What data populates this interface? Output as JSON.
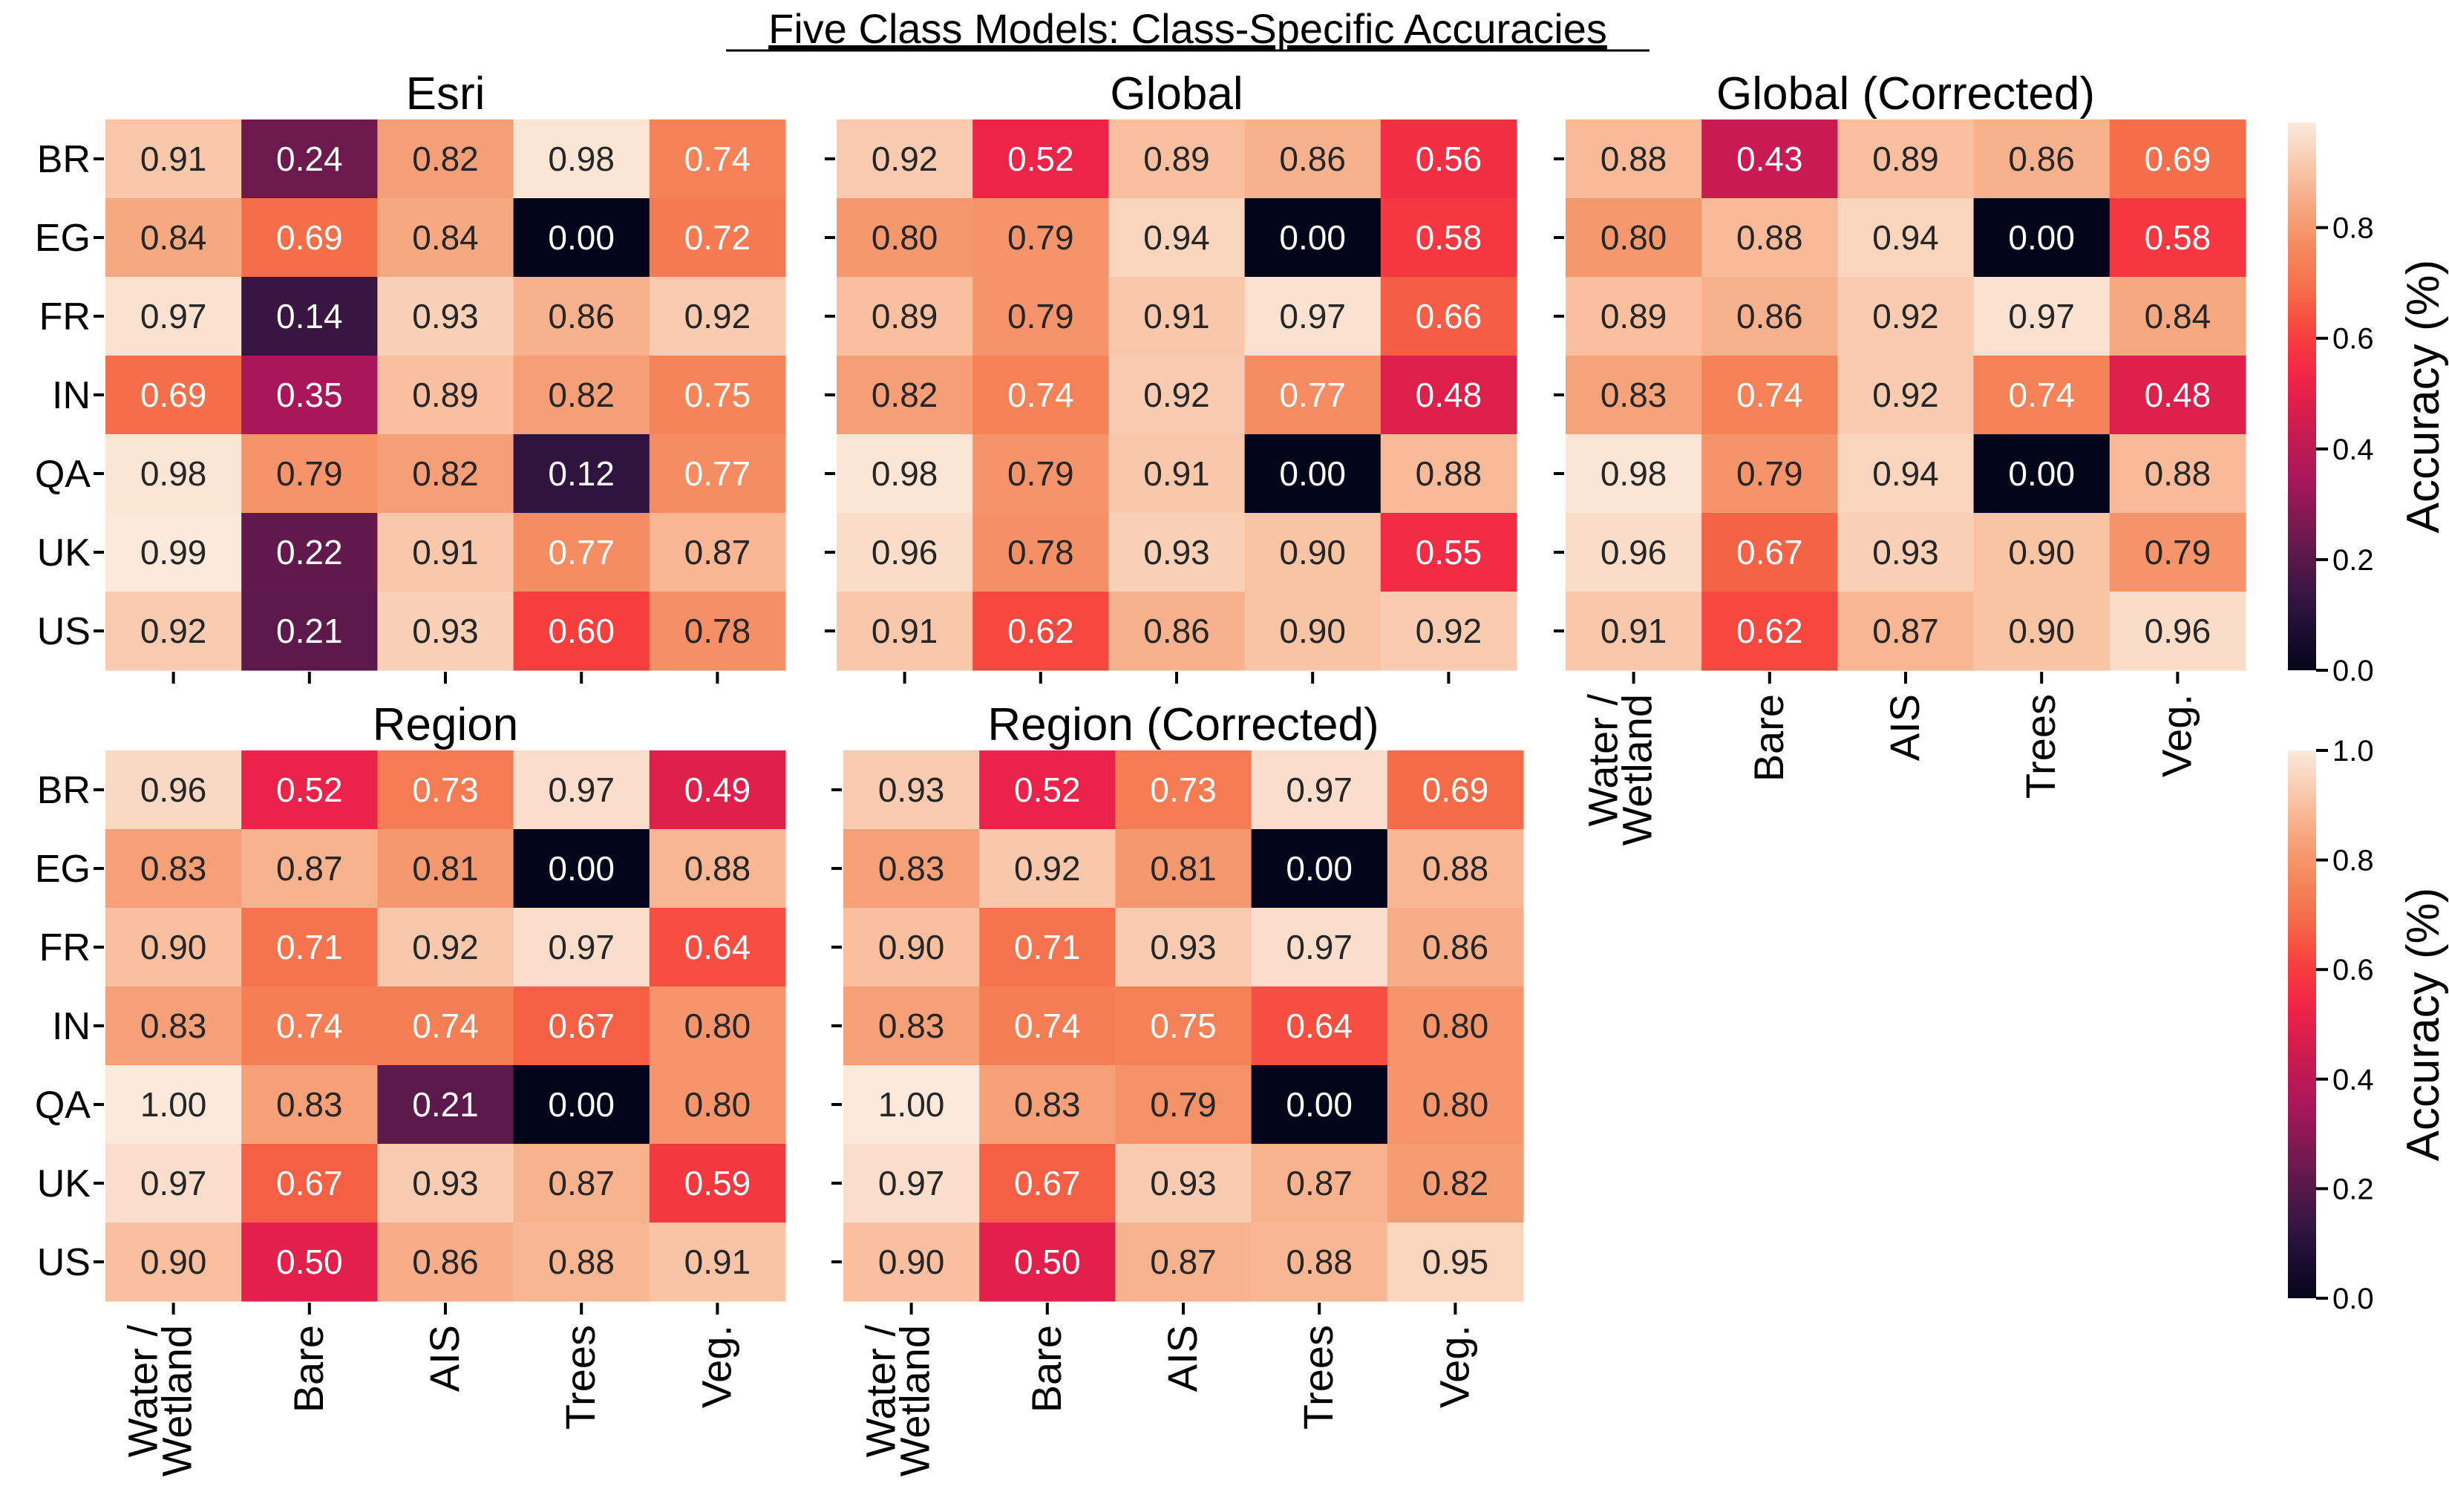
{
  "chart_data": {
    "type": "heatmap",
    "title": "Five Class Models: Class-Specific Accuracies",
    "rows": [
      "BR",
      "EG",
      "FR",
      "IN",
      "QA",
      "UK",
      "US"
    ],
    "columns": [
      "Water / Wetland",
      "Bare",
      "AIS",
      "Trees",
      "Veg."
    ],
    "colorbars": [
      {
        "label": "Accuracy (%)",
        "range": [
          0,
          0.99
        ],
        "ticks": [
          0.0,
          0.2,
          0.4,
          0.6,
          0.8
        ],
        "tick_labels": [
          "0.0",
          "0.2",
          "0.4",
          "0.6",
          "0.8"
        ]
      },
      {
        "label": "Accuracy (%)",
        "range": [
          0,
          1.0
        ],
        "ticks": [
          0.0,
          0.2,
          0.4,
          0.6,
          0.8,
          1.0
        ],
        "tick_labels": [
          "0.0",
          "0.2",
          "0.4",
          "0.6",
          "0.8",
          "1.0"
        ]
      }
    ],
    "panels": [
      {
        "title": "Esri",
        "colorbar": 0,
        "values": [
          [
            0.91,
            0.24,
            0.82,
            0.98,
            0.74
          ],
          [
            0.84,
            0.69,
            0.84,
            0.0,
            0.72
          ],
          [
            0.97,
            0.14,
            0.93,
            0.86,
            0.92
          ],
          [
            0.69,
            0.35,
            0.89,
            0.82,
            0.75
          ],
          [
            0.98,
            0.79,
            0.82,
            0.12,
            0.77
          ],
          [
            0.99,
            0.22,
            0.91,
            0.77,
            0.87
          ],
          [
            0.92,
            0.21,
            0.93,
            0.6,
            0.78
          ]
        ]
      },
      {
        "title": "Global",
        "colorbar": 0,
        "values": [
          [
            0.92,
            0.52,
            0.89,
            0.86,
            0.56
          ],
          [
            0.8,
            0.79,
            0.94,
            0.0,
            0.58
          ],
          [
            0.89,
            0.79,
            0.91,
            0.97,
            0.66
          ],
          [
            0.82,
            0.74,
            0.92,
            0.77,
            0.48
          ],
          [
            0.98,
            0.79,
            0.91,
            0.0,
            0.88
          ],
          [
            0.96,
            0.78,
            0.93,
            0.9,
            0.55
          ],
          [
            0.91,
            0.62,
            0.86,
            0.9,
            0.92
          ]
        ]
      },
      {
        "title": "Global (Corrected)",
        "colorbar": 0,
        "values": [
          [
            0.88,
            0.43,
            0.89,
            0.86,
            0.69
          ],
          [
            0.8,
            0.88,
            0.94,
            0.0,
            0.58
          ],
          [
            0.89,
            0.86,
            0.92,
            0.97,
            0.84
          ],
          [
            0.83,
            0.74,
            0.92,
            0.74,
            0.48
          ],
          [
            0.98,
            0.79,
            0.94,
            0.0,
            0.88
          ],
          [
            0.96,
            0.67,
            0.93,
            0.9,
            0.79
          ],
          [
            0.91,
            0.62,
            0.87,
            0.9,
            0.96
          ]
        ]
      },
      {
        "title": "Region",
        "colorbar": 1,
        "values": [
          [
            0.96,
            0.52,
            0.73,
            0.97,
            0.49
          ],
          [
            0.83,
            0.87,
            0.81,
            0.0,
            0.88
          ],
          [
            0.9,
            0.71,
            0.92,
            0.97,
            0.64
          ],
          [
            0.83,
            0.74,
            0.74,
            0.67,
            0.8
          ],
          [
            1.0,
            0.83,
            0.21,
            0.0,
            0.8
          ],
          [
            0.97,
            0.67,
            0.93,
            0.87,
            0.59
          ],
          [
            0.9,
            0.5,
            0.86,
            0.88,
            0.91
          ]
        ]
      },
      {
        "title": "Region (Corrected)",
        "colorbar": 1,
        "values": [
          [
            0.93,
            0.52,
            0.73,
            0.97,
            0.69
          ],
          [
            0.83,
            0.92,
            0.81,
            0.0,
            0.88
          ],
          [
            0.9,
            0.71,
            0.93,
            0.97,
            0.86
          ],
          [
            0.83,
            0.74,
            0.75,
            0.64,
            0.8
          ],
          [
            1.0,
            0.83,
            0.79,
            0.0,
            0.8
          ],
          [
            0.97,
            0.67,
            0.93,
            0.87,
            0.82
          ],
          [
            0.9,
            0.5,
            0.87,
            0.88,
            0.95
          ]
        ]
      }
    ],
    "colormap": "rocket"
  }
}
